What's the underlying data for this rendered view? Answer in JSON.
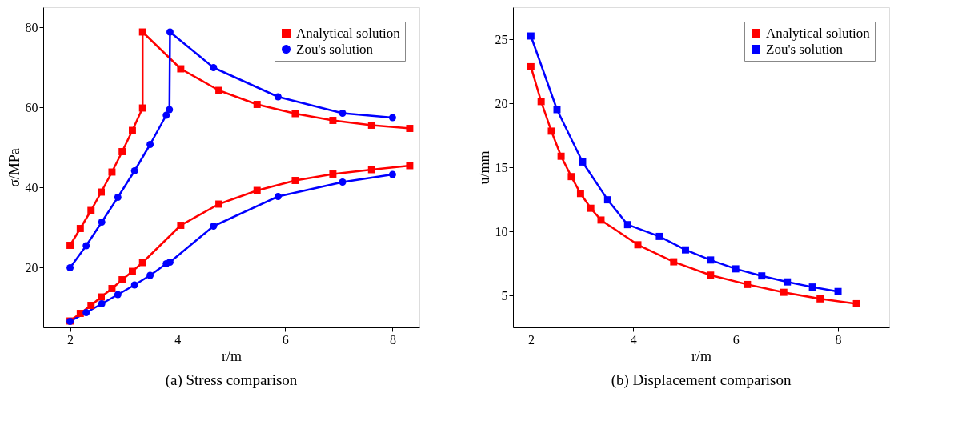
{
  "chart_data": [
    {
      "type": "line",
      "title": "(a) Stress comparison",
      "xlabel": "r/m",
      "ylabel": "σ/MPa",
      "xlim": [
        1.5,
        8.5
      ],
      "xticks": [
        2,
        4,
        6,
        8
      ],
      "ylim": [
        5,
        85
      ],
      "yticks": [
        20,
        40,
        60,
        80
      ],
      "legend": "top right",
      "grid": false,
      "line_style": "solid",
      "series": [
        {
          "name": "Analytical solution",
          "color": "#ff0000",
          "marker": "square",
          "x": [
            2,
            2.19,
            2.39,
            2.58,
            2.78,
            2.97,
            3.16,
            3.35,
            3.35,
            4.06,
            4.77,
            5.48,
            6.19,
            6.89,
            7.61,
            8.32
          ],
          "values": [
            25.5,
            29.7,
            34.2,
            38.8,
            43.8,
            48.9,
            54.2,
            59.8,
            78.8,
            69.6,
            64.2,
            60.7,
            58.4,
            56.7,
            55.5,
            54.7
          ]
        },
        {
          "color": "#ff0000",
          "marker": "square",
          "x": [
            2,
            2.19,
            2.39,
            2.58,
            2.78,
            2.97,
            3.16,
            3.35,
            4.06,
            4.77,
            5.48,
            6.19,
            6.89,
            7.61,
            8.32
          ],
          "values": [
            6.6,
            8.5,
            10.5,
            12.6,
            14.7,
            16.9,
            19.0,
            21.2,
            30.5,
            35.8,
            39.2,
            41.7,
            43.3,
            44.4,
            45.4
          ]
        },
        {
          "name": "Zou's solution",
          "color": "#0000ff",
          "marker": "circle",
          "x": [
            2,
            2.3,
            2.59,
            2.89,
            3.2,
            3.49,
            3.79,
            3.85,
            3.86,
            4.67,
            5.87,
            7.07,
            8.0
          ],
          "values": [
            19.9,
            25.4,
            31.3,
            37.5,
            44.1,
            50.7,
            58.0,
            59.4,
            78.8,
            69.9,
            62.6,
            58.5,
            57.4
          ]
        },
        {
          "color": "#0000ff",
          "marker": "circle",
          "x": [
            2,
            2.3,
            2.59,
            2.89,
            3.2,
            3.49,
            3.79,
            3.86,
            4.67,
            5.87,
            7.07,
            8.0
          ],
          "values": [
            6.5,
            8.7,
            10.9,
            13.2,
            15.6,
            18.0,
            20.9,
            21.3,
            30.3,
            37.7,
            41.3,
            43.2
          ]
        }
      ]
    },
    {
      "type": "line",
      "title": "(b) Displacement comparison",
      "xlabel": "r/m",
      "ylabel": "u/mm",
      "xlim": [
        1.65,
        9.0
      ],
      "xticks": [
        2,
        4,
        6,
        8
      ],
      "ylim": [
        2.5,
        27.5
      ],
      "yticks": [
        5,
        10,
        15,
        20,
        25
      ],
      "legend": "top right",
      "grid": false,
      "line_style": "solid",
      "marker": "square",
      "series": [
        {
          "name": "Analytical solution",
          "color": "#ff0000",
          "x": [
            2,
            2.2,
            2.4,
            2.59,
            2.79,
            2.97,
            3.17,
            3.37,
            4.09,
            4.79,
            5.51,
            6.23,
            6.94,
            7.65,
            8.36
          ],
          "values": [
            22.85,
            20.13,
            17.82,
            15.86,
            14.27,
            12.95,
            11.8,
            10.88,
            8.95,
            7.62,
            6.58,
            5.85,
            5.24,
            4.73,
            4.35
          ]
        },
        {
          "name": "Zou's solution",
          "color": "#0000ff",
          "x": [
            2,
            2.51,
            3.01,
            3.5,
            3.89,
            4.51,
            5.02,
            5.51,
            6.0,
            6.51,
            7.01,
            7.5,
            8.0
          ],
          "values": [
            25.25,
            19.5,
            15.41,
            12.46,
            10.52,
            9.6,
            8.55,
            7.76,
            7.07,
            6.52,
            6.05,
            5.65,
            5.3
          ]
        }
      ]
    }
  ]
}
